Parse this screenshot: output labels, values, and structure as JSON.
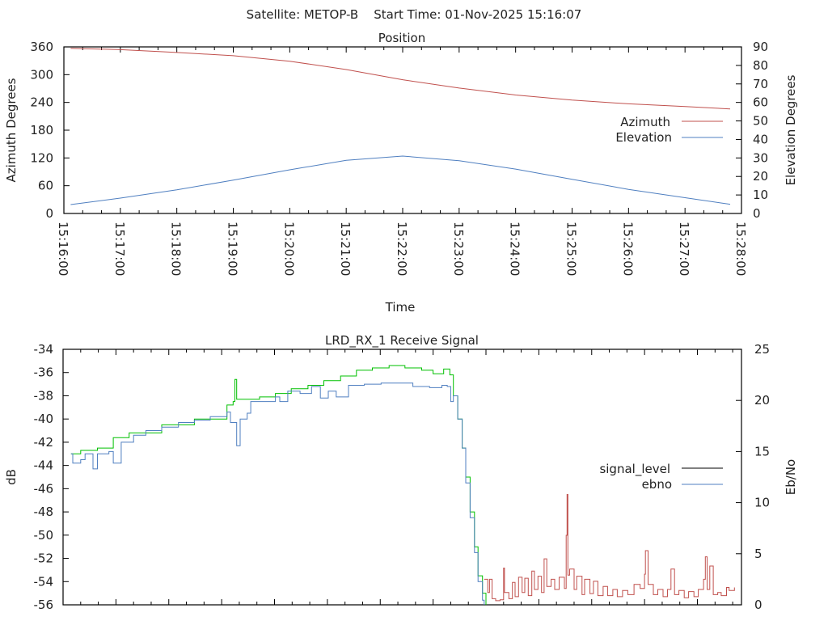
{
  "header": {
    "title": "Satellite: METOP-B    Start Time: 01-Nov-2025 15:16:07"
  },
  "colors": {
    "azimuth": "#c0504d",
    "elevation": "#4f7fc0",
    "signal_green": "#00c000",
    "signal_blue": "#4f7fc0",
    "ebno_red": "#c0504d",
    "legend_signal": "#000000",
    "legend_ebno": "#4f7fc0"
  },
  "chart_data": [
    {
      "type": "line",
      "title": "Position",
      "xlabel": "Time",
      "ylabel": "Azimuth Degrees",
      "y2label": "Elevation Degrees",
      "ylim": [
        0,
        360
      ],
      "y2lim": [
        0,
        90
      ],
      "xlim_minutes": [
        0,
        12
      ],
      "x_unit": "minutes after 15:16:00",
      "yticks": [
        "0",
        "60",
        "120",
        "180",
        "240",
        "300",
        "360"
      ],
      "y2ticks": [
        "0",
        "10",
        "20",
        "30",
        "40",
        "50",
        "60",
        "70",
        "80",
        "90"
      ],
      "xticks": [
        "15:16:00",
        "15:17:00",
        "15:18:00",
        "15:19:00",
        "15:20:00",
        "15:21:00",
        "15:22:00",
        "15:23:00",
        "15:24:00",
        "15:25:00",
        "15:26:00",
        "15:27:00",
        "15:28:00"
      ],
      "legend": {
        "position": "right",
        "entries": [
          "Azimuth",
          "Elevation"
        ]
      },
      "series": [
        {
          "name": "Azimuth",
          "axis": "y",
          "x": [
            0.12,
            1,
            2,
            3,
            4,
            5,
            6,
            7,
            8,
            9,
            10,
            11,
            11.8
          ],
          "values": [
            357,
            354,
            348,
            341,
            329,
            311,
            289,
            271,
            256,
            245,
            237,
            231,
            226
          ]
        },
        {
          "name": "Elevation",
          "axis": "y2",
          "x": [
            0.12,
            1,
            2,
            3,
            4,
            5,
            6,
            7,
            8,
            9,
            10,
            11,
            11.8
          ],
          "values": [
            4.8,
            8.3,
            12.8,
            18,
            23.6,
            28.7,
            31,
            28.5,
            24,
            18.5,
            13,
            8.5,
            5
          ]
        }
      ]
    },
    {
      "type": "line",
      "title": "LRD_RX_1 Receive Signal",
      "ylabel": "dB",
      "y2label": "Eb/No",
      "ylim": [
        -56,
        -34
      ],
      "y2lim": [
        0,
        25
      ],
      "xlim_seconds": [
        0,
        770
      ],
      "x_unit": "seconds after 15:16:00",
      "yticks": [
        "-34",
        "-36",
        "-38",
        "-40",
        "-42",
        "-44",
        "-46",
        "-48",
        "-50",
        "-52",
        "-54",
        "-56"
      ],
      "y2ticks": [
        "0",
        "5",
        "10",
        "15",
        "20",
        "25"
      ],
      "legend": {
        "position": "right",
        "entries": [
          "signal_level",
          "ebno"
        ]
      },
      "series": [
        {
          "name": "signal_level (green)",
          "axis": "y",
          "x": [
            9,
            20,
            39,
            57,
            75,
            112,
            149,
            186,
            193,
            195,
            197,
            223,
            241,
            259,
            278,
            296,
            315,
            333,
            351,
            370,
            379,
            388,
            407,
            420,
            432,
            439,
            443,
            448,
            453,
            457,
            462,
            467,
            471,
            476,
            480
          ],
          "values": [
            -43,
            -42.7,
            -42.5,
            -41.6,
            -41.2,
            -40.5,
            -40,
            -38.8,
            -38.5,
            -36.6,
            -38.3,
            -38.1,
            -37.8,
            -37.4,
            -37.1,
            -36.7,
            -36.3,
            -35.8,
            -35.6,
            -35.4,
            -35.4,
            -35.6,
            -35.8,
            -36.1,
            -35.7,
            -36.2,
            -38,
            -40,
            -42.5,
            -45,
            -48,
            -51,
            -53.5,
            -55,
            -56
          ]
        },
        {
          "name": "signal (blue)",
          "axis": "y",
          "x": [
            9,
            11,
            20,
            25,
            34,
            39,
            52,
            57,
            66,
            80,
            94,
            112,
            131,
            149,
            167,
            186,
            190,
            197,
            201,
            209,
            213,
            232,
            241,
            246,
            255,
            269,
            282,
            292,
            301,
            310,
            324,
            342,
            361,
            379,
            397,
            416,
            430,
            436,
            440,
            443,
            448,
            453,
            457,
            462,
            467,
            471,
            476,
            478
          ],
          "values": [
            -43,
            -43.8,
            -43.5,
            -43,
            -44.3,
            -43,
            -42.8,
            -43.8,
            -42,
            -41.4,
            -41,
            -40.7,
            -40.3,
            -40.1,
            -39.8,
            -39.4,
            -40.3,
            -42.3,
            -40,
            -39.5,
            -38.5,
            -38.5,
            -38.1,
            -38.5,
            -37.6,
            -37.8,
            -37.2,
            -38.2,
            -37.6,
            -38.1,
            -37.1,
            -37,
            -36.9,
            -36.9,
            -37.2,
            -37.3,
            -37.1,
            -37.2,
            -38.5,
            -38,
            -40,
            -42.5,
            -45.5,
            -48.5,
            -51.5,
            -54,
            -55.6,
            -56
          ]
        },
        {
          "name": "ebno (red)",
          "axis": "y2",
          "x": [
            478,
            482,
            484,
            487,
            491,
            496,
            500,
            501,
            506,
            510,
            513,
            517,
            521,
            524,
            528,
            532,
            535,
            539,
            543,
            546,
            549,
            554,
            558,
            563,
            569,
            571,
            572,
            573,
            575,
            580,
            583,
            589,
            592,
            598,
            602,
            607,
            613,
            618,
            624,
            629,
            635,
            641,
            648,
            655,
            660,
            661,
            664,
            670,
            675,
            681,
            686,
            690,
            694,
            699,
            705,
            710,
            716,
            721,
            727,
            729,
            731,
            734,
            738,
            743,
            747,
            753,
            756,
            762
          ],
          "values": [
            2.5,
            1.2,
            2.5,
            0.6,
            0.4,
            0.5,
            3.6,
            1.2,
            0.6,
            2.2,
            0.8,
            2.7,
            1.2,
            2.6,
            0.9,
            3.3,
            1.5,
            2.8,
            1.2,
            4.5,
            1.8,
            2.5,
            1.5,
            2.7,
            1.6,
            6.8,
            10.8,
            2.9,
            3.5,
            1.5,
            2.8,
            1.0,
            2.5,
            1.1,
            2.3,
            0.9,
            1.8,
            0.9,
            1.5,
            0.8,
            1.4,
            1.0,
            2.0,
            1.6,
            3.0,
            5.3,
            2.0,
            1.0,
            1.5,
            0.8,
            1.5,
            3.5,
            1.0,
            1.4,
            0.7,
            1.3,
            0.8,
            1.5,
            2.5,
            4.7,
            1.5,
            3.8,
            1.0,
            1.2,
            0.9,
            1.7,
            1.4,
            1.7
          ]
        }
      ]
    }
  ]
}
